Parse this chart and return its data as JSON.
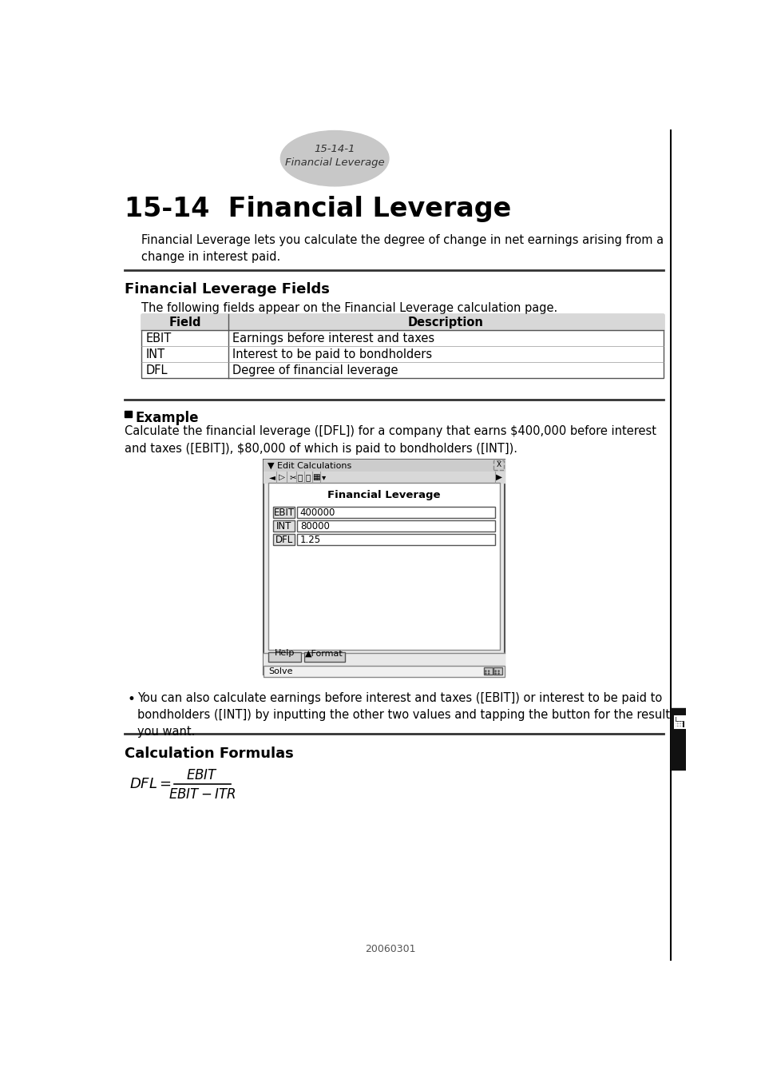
{
  "page_bg": "#ffffff",
  "tab_bg": "#c8c8c8",
  "tab_text_line1": "15-14-1",
  "tab_text_line2": "Financial Leverage",
  "main_title": "15-14  Financial Leverage",
  "intro_text": "Financial Leverage lets you calculate the degree of change in net earnings arising from a\nchange in interest paid.",
  "section1_title": "Financial Leverage Fields",
  "section1_desc": "The following fields appear on the Financial Leverage calculation page.",
  "table_headers": [
    "Field",
    "Description"
  ],
  "table_rows": [
    [
      "EBIT",
      "Earnings before interest and taxes"
    ],
    [
      "INT",
      "Interest to be paid to bondholders"
    ],
    [
      "DFL",
      "Degree of financial leverage"
    ]
  ],
  "example_title": "Example",
  "example_text": "Calculate the financial leverage ([DFL]) for a company that earns $400,000 before interest\nand taxes ([EBIT]), $80,000 of which is paid to bondholders ([INT]).",
  "bullet_text": "You can also calculate earnings before interest and taxes ([EBIT]) or interest to be paid to\nbondholders ([INT]) by inputting the other two values and tapping the button for the result\nyou want.",
  "section2_title": "Calculation Formulas",
  "footer_text": "20060301",
  "screen_title": "Financial Leverage",
  "screen_fields": [
    "EBIT",
    "INT",
    "DFL"
  ],
  "screen_values": [
    "400000",
    "80000",
    "1.25"
  ],
  "screen_window_title": "▼ Edit Calculations",
  "right_bar_color": "#000000",
  "right_tab_color": "#111111",
  "separator_color": "#333333",
  "table_header_bg": "#d8d8d8",
  "table_border": "#555555"
}
